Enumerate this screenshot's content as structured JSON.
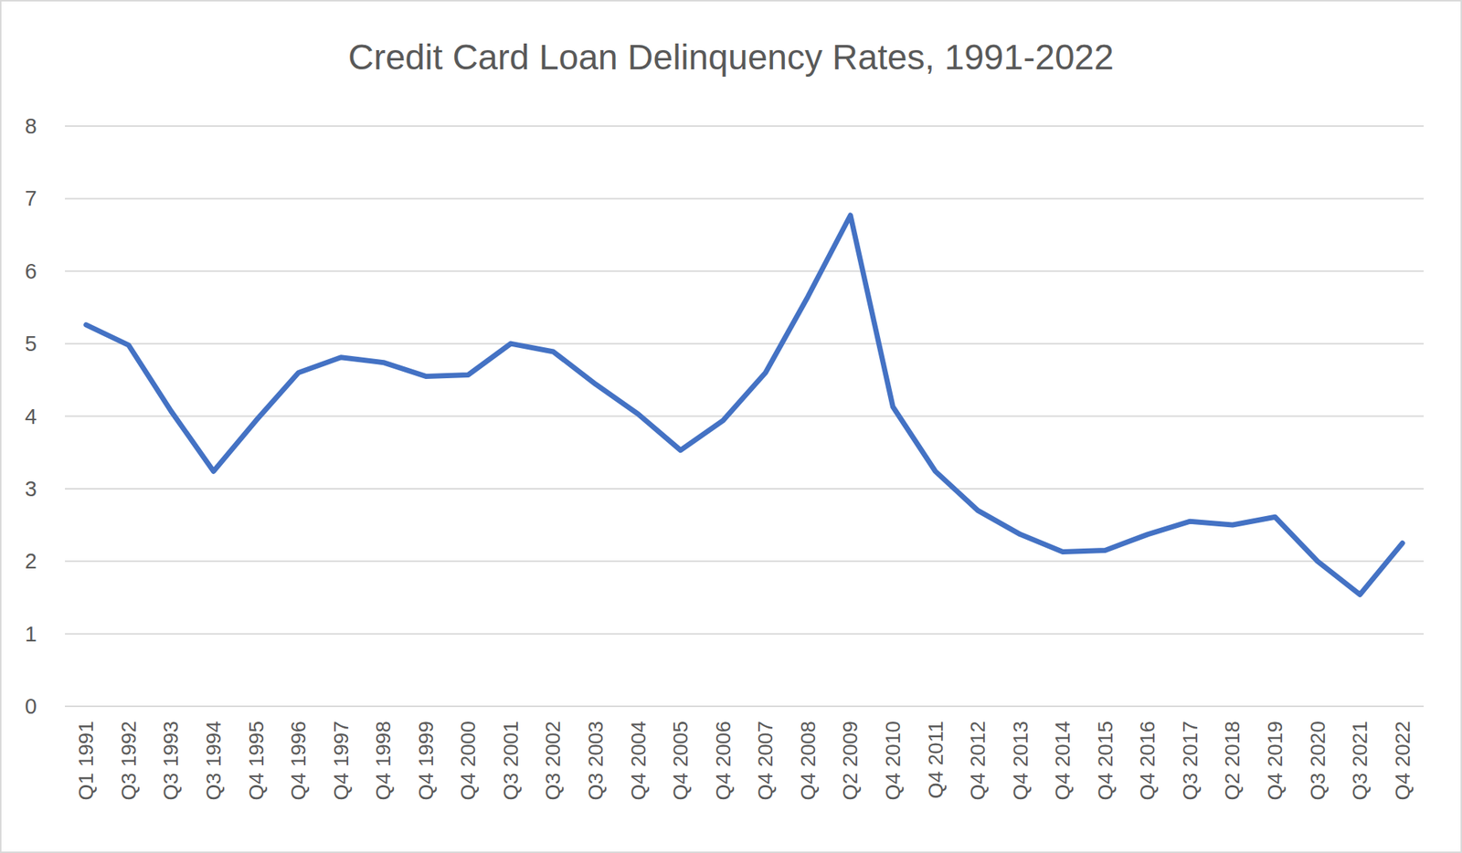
{
  "chart_data": {
    "type": "line",
    "title": "Credit Card Loan Delinquency Rates, 1991-2022",
    "categories": [
      "Q1 1991",
      "Q3 1992",
      "Q3 1993",
      "Q3 1994",
      "Q4 1995",
      "Q4 1996",
      "Q4 1997",
      "Q4 1998",
      "Q4 1999",
      "Q4 2000",
      "Q3 2001",
      "Q3 2002",
      "Q3 2003",
      "Q4 2004",
      "Q4 2005",
      "Q4 2006",
      "Q4 2007",
      "Q4 2008",
      "Q2 2009",
      "Q4 2010",
      "Q4 2011",
      "Q4 2012",
      "Q4 2013",
      "Q4 2014",
      "Q4 2015",
      "Q4 2016",
      "Q3 2017",
      "Q2 2018",
      "Q4 2019",
      "Q3 2020",
      "Q3 2021",
      "Q4 2022"
    ],
    "values": [
      5.26,
      4.98,
      4.07,
      3.24,
      3.94,
      4.6,
      4.81,
      4.74,
      4.55,
      4.57,
      5.0,
      4.89,
      4.44,
      4.03,
      3.53,
      3.94,
      4.6,
      5.65,
      6.77,
      4.13,
      3.24,
      2.7,
      2.37,
      2.13,
      2.15,
      2.37,
      2.55,
      2.5,
      2.61,
      2.0,
      1.54,
      2.25
    ],
    "color": "#4472c4",
    "ylim": [
      0,
      8
    ],
    "yticks": [
      0,
      1,
      2,
      3,
      4,
      5,
      6,
      7,
      8
    ],
    "grid": true
  }
}
